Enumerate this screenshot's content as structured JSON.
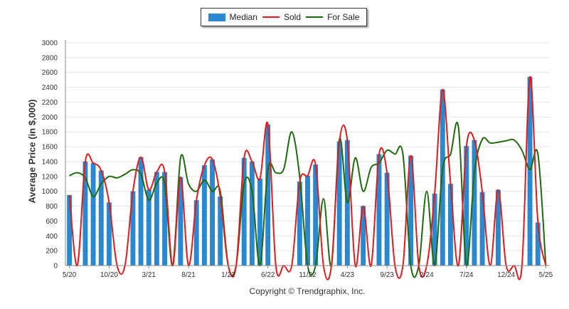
{
  "chart_data": {
    "type": "bar",
    "ylabel": "Average Price (in $,000)",
    "ylim": [
      0,
      3000
    ],
    "yticks": [
      0,
      200,
      400,
      600,
      800,
      1000,
      1200,
      1400,
      1600,
      1800,
      2000,
      2200,
      2400,
      2600,
      2800,
      3000
    ],
    "x_tick_labels": [
      "5/20",
      "10/20",
      "3/21",
      "8/21",
      "1/22",
      "6/22",
      "11/22",
      "4/23",
      "9/23",
      "2/24",
      "7/24",
      "12/24",
      "5/25"
    ],
    "categories": [
      "5/20",
      "6/20",
      "7/20",
      "8/20",
      "9/20",
      "10/20",
      "11/20",
      "12/20",
      "1/21",
      "2/21",
      "3/21",
      "4/21",
      "5/21",
      "6/21",
      "7/21",
      "8/21",
      "9/21",
      "10/21",
      "11/21",
      "12/21",
      "1/22",
      "2/22",
      "3/22",
      "4/22",
      "5/22",
      "6/22",
      "7/22",
      "8/22",
      "9/22",
      "10/22",
      "11/22",
      "12/22",
      "1/23",
      "2/23",
      "3/23",
      "4/23",
      "5/23",
      "6/23",
      "7/23",
      "8/23",
      "9/23",
      "10/23",
      "11/23",
      "12/23",
      "1/24",
      "2/24",
      "3/24",
      "4/24",
      "5/24",
      "6/24",
      "7/24",
      "8/24",
      "9/24",
      "10/24",
      "11/24",
      "12/24",
      "1/25",
      "2/25",
      "3/25",
      "4/25",
      "5/25"
    ],
    "grid": true,
    "legend": "top-center",
    "series": [
      {
        "name": "Median",
        "type": "bar",
        "color": "#2a88d0",
        "values": [
          950,
          0,
          1400,
          1380,
          1280,
          850,
          0,
          0,
          1000,
          1460,
          1020,
          1260,
          1260,
          0,
          1190,
          0,
          880,
          1350,
          1430,
          930,
          0,
          0,
          1450,
          1400,
          1170,
          1900,
          0,
          0,
          0,
          1130,
          1210,
          1360,
          0,
          0,
          1670,
          1690,
          0,
          800,
          0,
          1500,
          1250,
          0,
          0,
          1480,
          0,
          0,
          970,
          2370,
          1100,
          0,
          1610,
          1690,
          990,
          0,
          1020,
          0,
          0,
          0,
          2540,
          580,
          0
        ]
      },
      {
        "name": "Sold",
        "type": "line",
        "color": "#e41a1c",
        "values": [
          950,
          0,
          1400,
          1380,
          1280,
          850,
          0,
          0,
          1000,
          1460,
          1020,
          1260,
          1260,
          0,
          1190,
          0,
          880,
          1350,
          1430,
          930,
          0,
          0,
          1450,
          1400,
          1170,
          1900,
          0,
          0,
          0,
          1130,
          1210,
          1360,
          0,
          0,
          1670,
          1690,
          0,
          800,
          0,
          1500,
          1250,
          0,
          0,
          1480,
          0,
          0,
          970,
          2370,
          1100,
          0,
          1610,
          1690,
          990,
          0,
          1020,
          0,
          0,
          0,
          2540,
          580,
          0
        ]
      },
      {
        "name": "For Sale",
        "type": "line",
        "color": "#1e6b0b",
        "values": [
          1210,
          1250,
          1180,
          930,
          1100,
          1200,
          1180,
          1230,
          1290,
          1230,
          880,
          1110,
          1100,
          0,
          1450,
          1100,
          1000,
          1150,
          1000,
          1000,
          0,
          0,
          1100,
          1000,
          0,
          1300,
          1250,
          1300,
          1800,
          1200,
          0,
          0,
          900,
          0,
          1700,
          850,
          1450,
          1000,
          1320,
          1380,
          1550,
          1500,
          1500,
          0,
          0,
          1000,
          0,
          1300,
          1500,
          1860,
          0,
          1250,
          1700,
          1650,
          1660,
          1680,
          1690,
          1550,
          1290,
          1500,
          0
        ]
      }
    ]
  },
  "legend": {
    "items": [
      {
        "label": "Median",
        "color": "#2a88d0",
        "kind": "bar"
      },
      {
        "label": "Sold",
        "color": "#e41a1c",
        "kind": "line"
      },
      {
        "label": "For Sale",
        "color": "#1e6b0b",
        "kind": "line"
      }
    ]
  },
  "copyright": "Copyright © Trendgraphix, Inc."
}
